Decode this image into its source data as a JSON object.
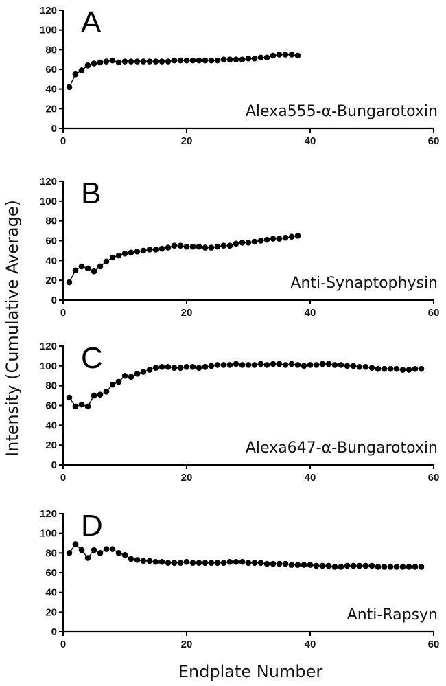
{
  "figure": {
    "ylabel": "Intensity (Cumulative Average)",
    "xlabel": "Endplate Number"
  },
  "chart_data": [
    {
      "type": "scatter",
      "panel": "A",
      "series_name": "Alexa555-α-Bungarotoxin",
      "xlim": [
        0,
        60
      ],
      "ylim": [
        0,
        120
      ],
      "xticks": [
        0,
        20,
        40,
        60
      ],
      "yticks": [
        0,
        20,
        40,
        60,
        80,
        100,
        120
      ],
      "x": [
        1,
        2,
        3,
        4,
        5,
        6,
        7,
        8,
        9,
        10,
        11,
        12,
        13,
        14,
        15,
        16,
        17,
        18,
        19,
        20,
        21,
        22,
        23,
        24,
        25,
        26,
        27,
        28,
        29,
        30,
        31,
        32,
        33,
        34,
        35,
        36,
        37,
        38
      ],
      "y": [
        42,
        55,
        59,
        64,
        66,
        67,
        68,
        69,
        67,
        68,
        68,
        68,
        68,
        68,
        68,
        68,
        68,
        69,
        69,
        69,
        69,
        69,
        69,
        69,
        69,
        70,
        70,
        70,
        70,
        71,
        71,
        72,
        72,
        74,
        75,
        75,
        75,
        74
      ]
    },
    {
      "type": "scatter",
      "panel": "B",
      "series_name": "Anti-Synaptophysin",
      "xlim": [
        0,
        60
      ],
      "ylim": [
        0,
        120
      ],
      "xticks": [
        0,
        20,
        40,
        60
      ],
      "yticks": [
        0,
        20,
        40,
        60,
        80,
        100,
        120
      ],
      "x": [
        1,
        2,
        3,
        4,
        5,
        6,
        7,
        8,
        9,
        10,
        11,
        12,
        13,
        14,
        15,
        16,
        17,
        18,
        19,
        20,
        21,
        22,
        23,
        24,
        25,
        26,
        27,
        28,
        29,
        30,
        31,
        32,
        33,
        34,
        35,
        36,
        37,
        38
      ],
      "y": [
        18,
        30,
        34,
        32,
        29,
        34,
        39,
        43,
        45,
        47,
        48,
        49,
        50,
        51,
        51,
        52,
        53,
        55,
        55,
        54,
        54,
        54,
        53,
        53,
        54,
        55,
        55,
        57,
        58,
        58,
        59,
        60,
        61,
        62,
        62,
        63,
        64,
        65
      ]
    },
    {
      "type": "scatter",
      "panel": "C",
      "series_name": "Alexa647-α-Bungarotoxin",
      "xlim": [
        0,
        60
      ],
      "ylim": [
        0,
        120
      ],
      "xticks": [
        0,
        20,
        40,
        60
      ],
      "yticks": [
        0,
        20,
        40,
        60,
        80,
        100,
        120
      ],
      "x": [
        1,
        2,
        3,
        4,
        5,
        6,
        7,
        8,
        9,
        10,
        11,
        12,
        13,
        14,
        15,
        16,
        17,
        18,
        19,
        20,
        21,
        22,
        23,
        24,
        25,
        26,
        27,
        28,
        29,
        30,
        31,
        32,
        33,
        34,
        35,
        36,
        37,
        38,
        39,
        40,
        41,
        42,
        43,
        44,
        45,
        46,
        47,
        48,
        49,
        50,
        51,
        52,
        53,
        54,
        55,
        56,
        57,
        58
      ],
      "y": [
        68,
        59,
        61,
        59,
        70,
        71,
        74,
        81,
        84,
        90,
        89,
        92,
        94,
        96,
        98,
        99,
        99,
        98,
        98,
        99,
        99,
        98,
        99,
        100,
        101,
        101,
        101,
        102,
        101,
        101,
        101,
        102,
        101,
        102,
        102,
        101,
        102,
        101,
        100,
        101,
        101,
        102,
        102,
        101,
        101,
        100,
        100,
        99,
        99,
        98,
        97,
        97,
        97,
        97,
        96,
        96,
        97,
        97
      ]
    },
    {
      "type": "scatter",
      "panel": "D",
      "series_name": "Anti-Rapsyn",
      "xlim": [
        0,
        60
      ],
      "ylim": [
        0,
        120
      ],
      "xticks": [
        0,
        20,
        40,
        60
      ],
      "yticks": [
        0,
        20,
        40,
        60,
        80,
        100,
        120
      ],
      "x": [
        1,
        2,
        3,
        4,
        5,
        6,
        7,
        8,
        9,
        10,
        11,
        12,
        13,
        14,
        15,
        16,
        17,
        18,
        19,
        20,
        21,
        22,
        23,
        24,
        25,
        26,
        27,
        28,
        29,
        30,
        31,
        32,
        33,
        34,
        35,
        36,
        37,
        38,
        39,
        40,
        41,
        42,
        43,
        44,
        45,
        46,
        47,
        48,
        49,
        50,
        51,
        52,
        53,
        54,
        55,
        56,
        57,
        58
      ],
      "y": [
        80,
        89,
        83,
        75,
        83,
        80,
        84,
        84,
        80,
        78,
        74,
        73,
        72,
        72,
        71,
        71,
        70,
        70,
        70,
        71,
        70,
        70,
        70,
        70,
        70,
        70,
        71,
        71,
        71,
        70,
        70,
        70,
        69,
        69,
        69,
        69,
        68,
        68,
        68,
        68,
        67,
        67,
        67,
        66,
        66,
        67,
        67,
        67,
        67,
        67,
        66,
        66,
        66,
        66,
        66,
        66,
        66,
        66
      ]
    }
  ]
}
